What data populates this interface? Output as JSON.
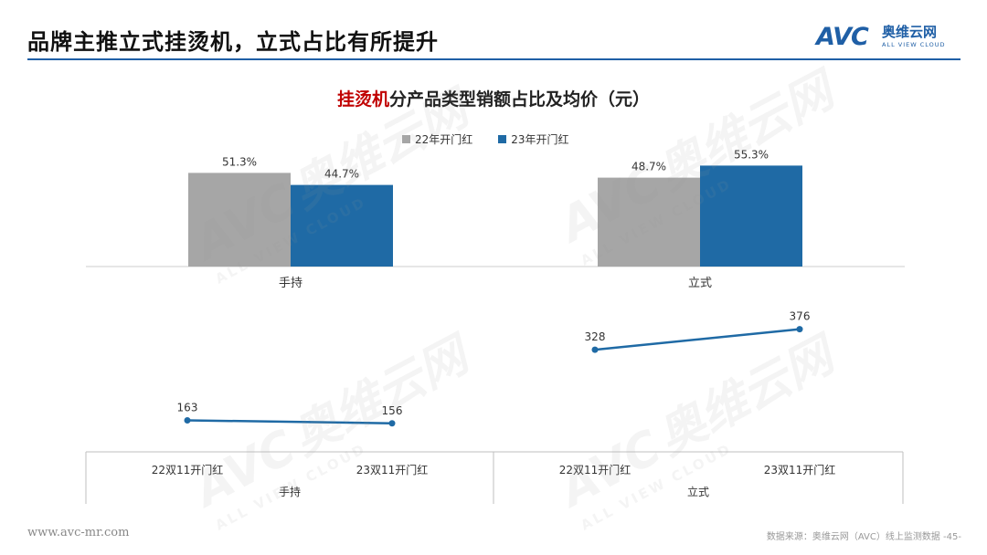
{
  "page": {
    "title": "品牌主推立式挂烫机，立式占比有所提升",
    "footer_left": "www.avc-mr.com",
    "footer_right": "数据来源：奥维云网（AVC）线上监测数据  -45-"
  },
  "logo": {
    "mark": "AVC",
    "cn": "奥维云网",
    "en": "ALL VIEW CLOUD",
    "icon": "avc-logo-icon"
  },
  "watermark": {
    "text": "AVC",
    "cn": "奥维云网",
    "en": "ALL VIEW CLOUD"
  },
  "colors": {
    "series_22": "#a6a6a6",
    "series_23": "#1f6aa5",
    "line": "#1f6aa5",
    "title_accent": "#c00000",
    "rule": "#1f5fa6"
  },
  "chart_data": [
    {
      "type": "bar",
      "title_accent": "挂烫机",
      "title_rest": "分产品类型销额占比及均价（元）",
      "categories": [
        "手持",
        "立式"
      ],
      "series": [
        {
          "name": "22年开门红",
          "values": [
            51.3,
            48.7
          ],
          "labels": [
            "51.3%",
            "48.7%"
          ]
        },
        {
          "name": "23年开门红",
          "values": [
            44.7,
            55.3
          ],
          "labels": [
            "44.7%",
            "55.3%"
          ]
        }
      ],
      "ylim": [
        0,
        70
      ],
      "legend": "top-center"
    },
    {
      "type": "line",
      "groups": [
        {
          "name": "手持",
          "x": [
            "22双11开门红",
            "23双11开门红"
          ],
          "values": [
            163,
            156
          ]
        },
        {
          "name": "立式",
          "x": [
            "22双11开门红",
            "23双11开门红"
          ],
          "values": [
            328,
            376
          ]
        }
      ],
      "ylim": [
        100,
        420
      ]
    }
  ]
}
